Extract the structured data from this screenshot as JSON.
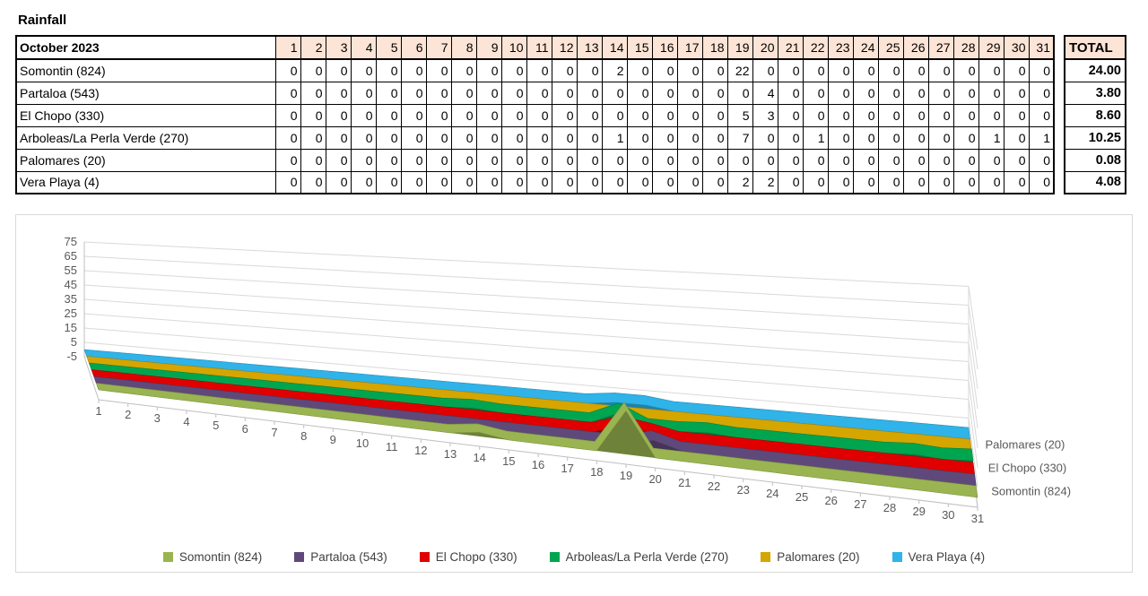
{
  "page_title": "Rainfall",
  "table": {
    "month_header": "October 2023",
    "total_header": "TOTAL",
    "rows": [
      {
        "label": "Somontin (824)",
        "total": "24.00"
      },
      {
        "label": "Partaloa (543)",
        "total": "3.80"
      },
      {
        "label": "El Chopo (330)",
        "total": "8.60"
      },
      {
        "label": "Arboleas/La Perla Verde (270)",
        "total": "10.25"
      },
      {
        "label": "Palomares (20)",
        "total": "0.08"
      },
      {
        "label": "Vera Playa (4)",
        "total": "4.08"
      }
    ]
  },
  "chart_data": {
    "type": "area",
    "style": "3d-area",
    "title": "",
    "xlabel": "",
    "ylabel": "",
    "grid": true,
    "legend_position": "bottom",
    "categories": [
      1,
      2,
      3,
      4,
      5,
      6,
      7,
      8,
      9,
      10,
      11,
      12,
      13,
      14,
      15,
      16,
      17,
      18,
      19,
      20,
      21,
      22,
      23,
      24,
      25,
      26,
      27,
      28,
      29,
      30,
      31
    ],
    "series": [
      {
        "name": "Somontin (824)",
        "color": "#99B451",
        "values": [
          0,
          0,
          0,
          0,
          0,
          0,
          0,
          0,
          0,
          0,
          0,
          0,
          0,
          2,
          0,
          0,
          0,
          0,
          22,
          0,
          0,
          0,
          0,
          0,
          0,
          0,
          0,
          0,
          0,
          0,
          0
        ]
      },
      {
        "name": "Partaloa (543)",
        "color": "#5F497A",
        "values": [
          0,
          0,
          0,
          0,
          0,
          0,
          0,
          0,
          0,
          0,
          0,
          0,
          0,
          0,
          0,
          0,
          0,
          0,
          0,
          4,
          0,
          0,
          0,
          0,
          0,
          0,
          0,
          0,
          0,
          0,
          0
        ]
      },
      {
        "name": "El Chopo (330)",
        "color": "#E00000",
        "values": [
          0,
          0,
          0,
          0,
          0,
          0,
          0,
          0,
          0,
          0,
          0,
          0,
          0,
          0,
          0,
          0,
          0,
          0,
          5,
          3,
          0,
          0,
          0,
          0,
          0,
          0,
          0,
          0,
          0,
          0,
          0
        ]
      },
      {
        "name": "Arboleas/La Perla Verde (270)",
        "color": "#00A550",
        "values": [
          0,
          0,
          0,
          0,
          0,
          0,
          0,
          0,
          0,
          0,
          0,
          0,
          0,
          1,
          0,
          0,
          0,
          0,
          7,
          0,
          0,
          1,
          0,
          0,
          0,
          0,
          0,
          0,
          1,
          0,
          1
        ]
      },
      {
        "name": "Palomares (20)",
        "color": "#D5A500",
        "values": [
          0,
          0,
          0,
          0,
          0,
          0,
          0,
          0,
          0,
          0,
          0,
          0,
          0,
          0,
          0,
          0,
          0,
          0,
          0,
          0,
          0,
          0,
          0,
          0,
          0,
          0,
          0,
          0,
          0,
          0,
          0
        ]
      },
      {
        "name": "Vera Playa (4)",
        "color": "#2FB3E8",
        "values": [
          0,
          0,
          0,
          0,
          0,
          0,
          0,
          0,
          0,
          0,
          0,
          0,
          0,
          0,
          0,
          0,
          0,
          0,
          2,
          2,
          0,
          0,
          0,
          0,
          0,
          0,
          0,
          0,
          0,
          0,
          0
        ]
      }
    ],
    "value_axis": {
      "min": -5,
      "max": 75,
      "step": 10
    },
    "ylim": [
      -5,
      75
    ],
    "depth_axis_labels": [
      {
        "series_index": 4,
        "label": "Palomares (20)"
      },
      {
        "series_index": 2,
        "label": "El Chopo (330)"
      },
      {
        "series_index": 0,
        "label": "Somontin (824)"
      }
    ]
  }
}
